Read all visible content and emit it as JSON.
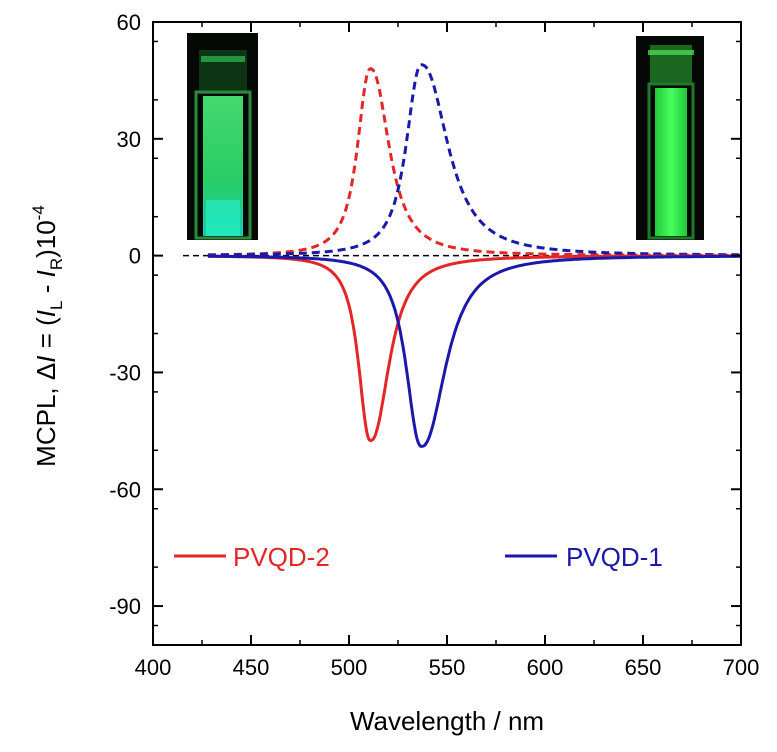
{
  "chart_data": {
    "type": "line",
    "title": "",
    "xlabel": "Wavelength / nm",
    "ylabel_parts": {
      "prefix": "MCPL, Δ",
      "I1": "I",
      "eq": " = (",
      "I2": "I",
      "sub_L": "L",
      "minus": " - ",
      "I3": "I",
      "sub_R": "R",
      "close": ")10",
      "exp": "-4"
    },
    "xlim": [
      400,
      700
    ],
    "ylim": [
      -100,
      60
    ],
    "x_ticks": [
      400,
      450,
      500,
      550,
      600,
      650,
      700
    ],
    "x_tick_labels": [
      "400",
      "450",
      "500",
      "550",
      "600",
      "650",
      "700"
    ],
    "y_ticks": [
      60,
      30,
      0,
      -30,
      -60,
      -90
    ],
    "y_tick_labels": [
      "60",
      "30",
      "0",
      "-30",
      "-60",
      "-90"
    ],
    "zero_line": true,
    "x_range_data": [
      428,
      700
    ],
    "series": [
      {
        "name": "PVQD-2",
        "kind": "MCPL",
        "style": "solid",
        "color": "#e32626",
        "peak_x": 511,
        "peak_y": -47.5,
        "sigma_left": 5.5,
        "sigma_right": 8.5
      },
      {
        "name": "PVQD-1",
        "kind": "MCPL",
        "style": "solid",
        "color": "#1a1aaa",
        "peak_x": 537,
        "peak_y": -49,
        "sigma_left": 7,
        "sigma_right": 11
      },
      {
        "name": "PVQD-2 PL",
        "kind": "PL",
        "style": "dashed",
        "color": "#e32626",
        "peak_x": 511,
        "peak_y": 48,
        "sigma_left": 6,
        "sigma_right": 8.5
      },
      {
        "name": "PVQD-1 PL",
        "kind": "PL",
        "style": "dashed",
        "color": "#1a1aaa",
        "peak_x": 537,
        "peak_y": 49,
        "sigma_left": 7,
        "sigma_right": 12
      }
    ],
    "legend": [
      {
        "label": "PVQD-2",
        "color": "#e32626",
        "placement": "bottom-left"
      },
      {
        "label": "PVQD-1",
        "color": "#1a1aaa",
        "placement": "bottom-right"
      }
    ],
    "insets": [
      {
        "name": "cuvette-photo-left",
        "placement": "top-left",
        "glow_color": "#2be86a"
      },
      {
        "name": "cuvette-photo-right",
        "placement": "top-right",
        "glow_color": "#32f050"
      }
    ]
  }
}
